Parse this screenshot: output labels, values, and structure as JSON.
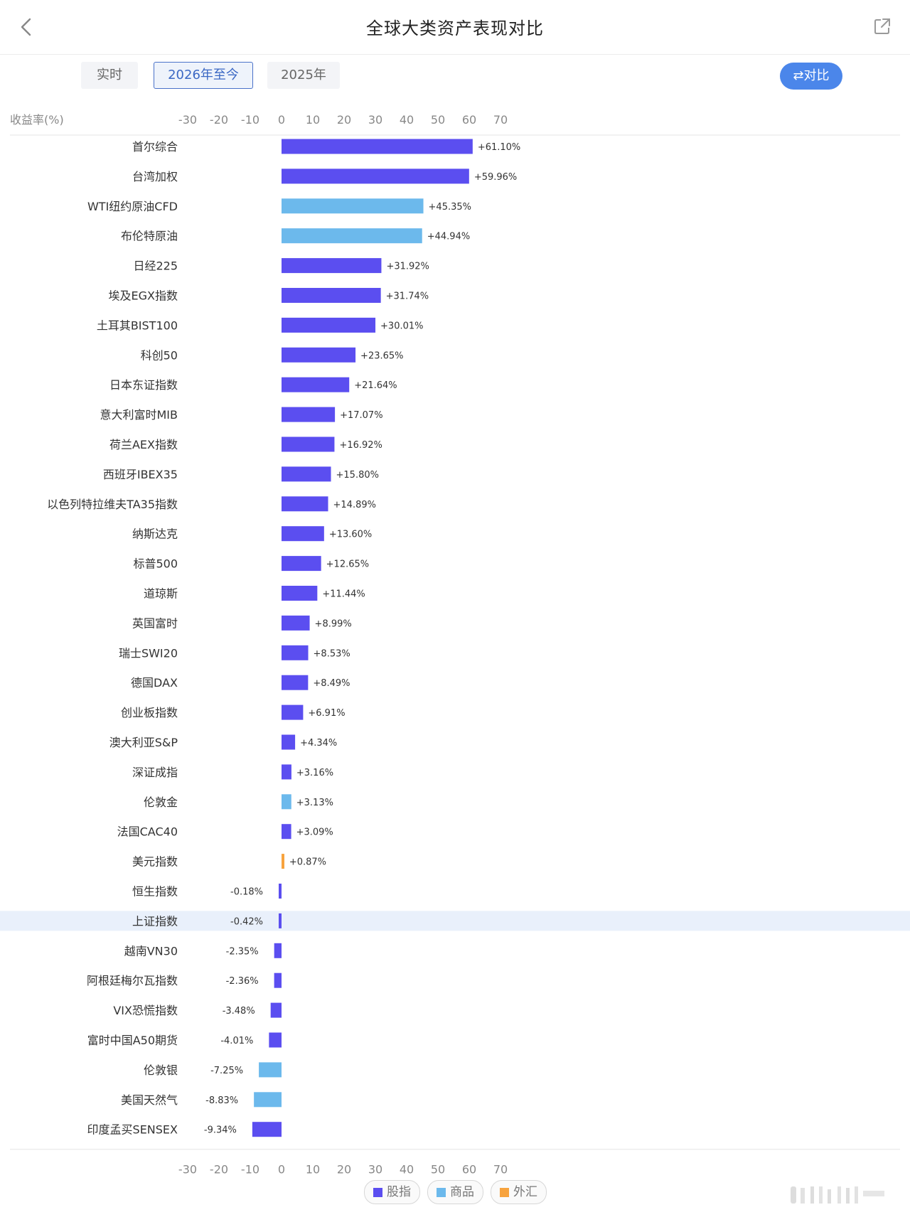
{
  "header": {
    "title": "全球大类资产表现对比"
  },
  "tabs": [
    {
      "label": "实时",
      "active": false
    },
    {
      "label": "2026年至今",
      "active": true
    },
    {
      "label": "2025年",
      "active": false
    }
  ],
  "compare_button": {
    "label": "对比"
  },
  "colors": {
    "股指": "#5b4ef0",
    "商品": "#6cb9ec",
    "外汇": "#f7a33e",
    "highlight_row": "#e9f0fb"
  },
  "legend": [
    {
      "label": "股指",
      "color": "#5b4ef0"
    },
    {
      "label": "商品",
      "color": "#6cb9ec"
    },
    {
      "label": "外汇",
      "color": "#f7a33e"
    }
  ],
  "chart_data": {
    "type": "bar",
    "orientation": "horizontal",
    "ylabel": "收益率(%)",
    "xlim": [
      -30,
      70
    ],
    "xticks": [
      -30,
      -20,
      -10,
      0,
      10,
      20,
      30,
      40,
      50,
      60,
      70
    ],
    "highlight": "上证指数",
    "legend_position": "bottom",
    "rows": [
      {
        "name": "首尔综合",
        "value": 61.1,
        "label": "+61.10%",
        "cat": "股指"
      },
      {
        "name": "台湾加权",
        "value": 59.96,
        "label": "+59.96%",
        "cat": "股指"
      },
      {
        "name": "WTI纽约原油CFD",
        "value": 45.35,
        "label": "+45.35%",
        "cat": "商品"
      },
      {
        "name": "布伦特原油",
        "value": 44.94,
        "label": "+44.94%",
        "cat": "商品"
      },
      {
        "name": "日经225",
        "value": 31.92,
        "label": "+31.92%",
        "cat": "股指"
      },
      {
        "name": "埃及EGX指数",
        "value": 31.74,
        "label": "+31.74%",
        "cat": "股指"
      },
      {
        "name": "土耳其BIST100",
        "value": 30.01,
        "label": "+30.01%",
        "cat": "股指"
      },
      {
        "name": "科创50",
        "value": 23.65,
        "label": "+23.65%",
        "cat": "股指"
      },
      {
        "name": "日本东证指数",
        "value": 21.64,
        "label": "+21.64%",
        "cat": "股指"
      },
      {
        "name": "意大利富时MIB",
        "value": 17.07,
        "label": "+17.07%",
        "cat": "股指"
      },
      {
        "name": "荷兰AEX指数",
        "value": 16.92,
        "label": "+16.92%",
        "cat": "股指"
      },
      {
        "name": "西班牙IBEX35",
        "value": 15.8,
        "label": "+15.80%",
        "cat": "股指"
      },
      {
        "name": "以色列特拉维夫TA35指数",
        "value": 14.89,
        "label": "+14.89%",
        "cat": "股指"
      },
      {
        "name": "纳斯达克",
        "value": 13.6,
        "label": "+13.60%",
        "cat": "股指"
      },
      {
        "name": "标普500",
        "value": 12.65,
        "label": "+12.65%",
        "cat": "股指"
      },
      {
        "name": "道琼斯",
        "value": 11.44,
        "label": "+11.44%",
        "cat": "股指"
      },
      {
        "name": "英国富时",
        "value": 8.99,
        "label": "+8.99%",
        "cat": "股指"
      },
      {
        "name": "瑞士SWI20",
        "value": 8.53,
        "label": "+8.53%",
        "cat": "股指"
      },
      {
        "name": "德国DAX",
        "value": 8.49,
        "label": "+8.49%",
        "cat": "股指"
      },
      {
        "name": "创业板指数",
        "value": 6.91,
        "label": "+6.91%",
        "cat": "股指"
      },
      {
        "name": "澳大利亚S&P",
        "value": 4.34,
        "label": "+4.34%",
        "cat": "股指"
      },
      {
        "name": "深证成指",
        "value": 3.16,
        "label": "+3.16%",
        "cat": "股指"
      },
      {
        "name": "伦敦金",
        "value": 3.13,
        "label": "+3.13%",
        "cat": "商品"
      },
      {
        "name": "法国CAC40",
        "value": 3.09,
        "label": "+3.09%",
        "cat": "股指"
      },
      {
        "name": "美元指数",
        "value": 0.87,
        "label": "+0.87%",
        "cat": "外汇"
      },
      {
        "name": "恒生指数",
        "value": -0.18,
        "label": "-0.18%",
        "cat": "股指"
      },
      {
        "name": "上证指数",
        "value": -0.42,
        "label": "-0.42%",
        "cat": "股指"
      },
      {
        "name": "越南VN30",
        "value": -2.35,
        "label": "-2.35%",
        "cat": "股指"
      },
      {
        "name": "阿根廷梅尔瓦指数",
        "value": -2.36,
        "label": "-2.36%",
        "cat": "股指"
      },
      {
        "name": "VIX恐慌指数",
        "value": -3.48,
        "label": "-3.48%",
        "cat": "股指"
      },
      {
        "name": "富时中国A50期货",
        "value": -4.01,
        "label": "-4.01%",
        "cat": "股指"
      },
      {
        "name": "伦敦银",
        "value": -7.25,
        "label": "-7.25%",
        "cat": "商品"
      },
      {
        "name": "美国天然气",
        "value": -8.83,
        "label": "-8.83%",
        "cat": "商品"
      },
      {
        "name": "印度孟买SENSEX",
        "value": -9.34,
        "label": "-9.34%",
        "cat": "股指"
      }
    ]
  }
}
